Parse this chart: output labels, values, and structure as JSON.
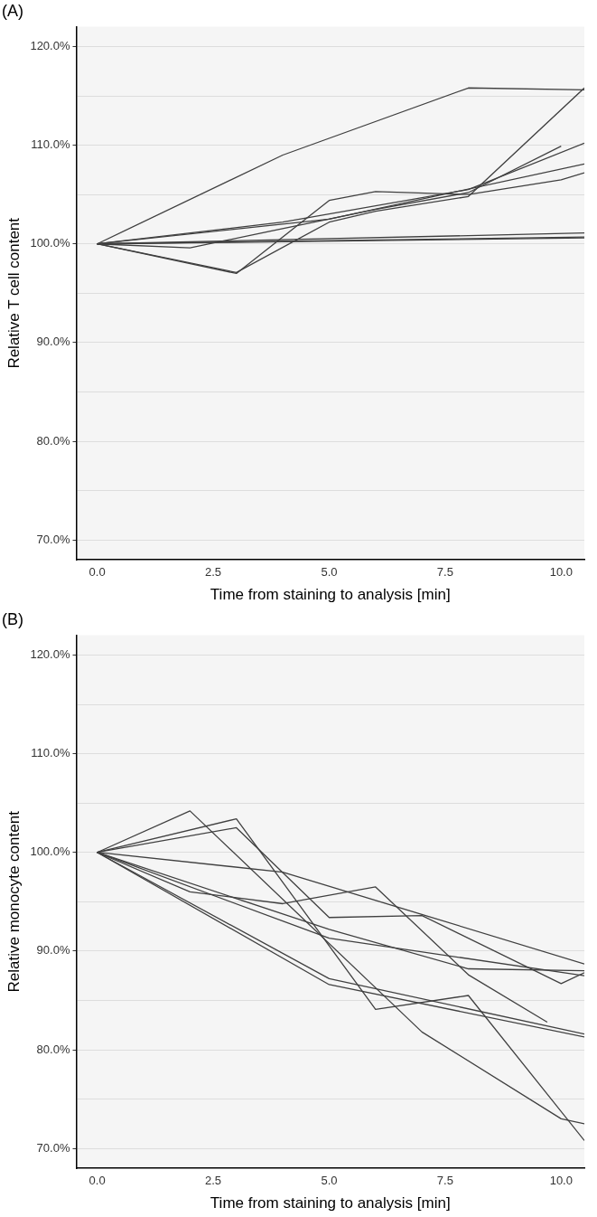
{
  "chart_data": [
    {
      "type": "line",
      "title": "(A)",
      "xlabel": "Time from staining to analysis [min]",
      "ylabel": "Relative T cell content",
      "xlim": [
        -0.45,
        10.5
      ],
      "ylim": [
        68,
        122
      ],
      "xticks": [
        {
          "value": 0,
          "label": "0.0"
        },
        {
          "value": 2.5,
          "label": "2.5"
        },
        {
          "value": 5,
          "label": "5.0"
        },
        {
          "value": 7.5,
          "label": "7.5"
        },
        {
          "value": 10,
          "label": "10.0"
        }
      ],
      "yticks": [
        {
          "value": 70,
          "label": "70.0%"
        },
        {
          "value": 75,
          "label": null
        },
        {
          "value": 80,
          "label": "80.0%"
        },
        {
          "value": 85,
          "label": null
        },
        {
          "value": 90,
          "label": "90.0%"
        },
        {
          "value": 95,
          "label": null
        },
        {
          "value": 100,
          "label": "100.0%"
        },
        {
          "value": 105,
          "label": null
        },
        {
          "value": 110,
          "label": "110.0%"
        },
        {
          "value": 115,
          "label": null
        },
        {
          "value": 120,
          "label": "120.0%"
        }
      ],
      "grid": "y",
      "marker": "none",
      "line_style": "solid",
      "legend": false,
      "series": [
        {
          "color": "#404040",
          "x": [
            0,
            4,
            8,
            10.5
          ],
          "values": [
            100,
            109,
            115.8,
            115.6
          ]
        },
        {
          "color": "#404040",
          "x": [
            0,
            3,
            5,
            6,
            8,
            10.5
          ],
          "values": [
            100,
            97.1,
            102.2,
            103.3,
            104.8,
            115.8
          ]
        },
        {
          "color": "#404040",
          "x": [
            0,
            3,
            5,
            6,
            8,
            10,
            10.5
          ],
          "values": [
            100,
            97.0,
            104.4,
            105.3,
            105.0,
            106.5,
            107.2
          ]
        },
        {
          "color": "#404040",
          "x": [
            0,
            2,
            6,
            8,
            10
          ],
          "values": [
            100,
            99.6,
            103.5,
            105.2,
            109.9
          ]
        },
        {
          "color": "#404040",
          "x": [
            0,
            4,
            8,
            10.5
          ],
          "values": [
            100,
            102.2,
            105.5,
            110.2
          ]
        },
        {
          "color": "#404040",
          "x": [
            0,
            5,
            10.5
          ],
          "values": [
            100,
            102.5,
            108.1
          ]
        },
        {
          "color": "#404040",
          "x": [
            0,
            10.5
          ],
          "values": [
            100,
            101.1
          ]
        },
        {
          "color": "#404040",
          "x": [
            0,
            10.5
          ],
          "values": [
            100,
            100.7
          ]
        },
        {
          "color": "#404040",
          "x": [
            0,
            2,
            10.5
          ],
          "values": [
            100,
            100.1,
            100.6
          ]
        }
      ]
    },
    {
      "type": "line",
      "title": "(B)",
      "xlabel": "Time from staining to analysis [min]",
      "ylabel": "Relative monocyte content",
      "xlim": [
        -0.45,
        10.5
      ],
      "ylim": [
        68,
        122
      ],
      "xticks": [
        {
          "value": 0,
          "label": "0.0"
        },
        {
          "value": 2.5,
          "label": "2.5"
        },
        {
          "value": 5,
          "label": "5.0"
        },
        {
          "value": 7.5,
          "label": "7.5"
        },
        {
          "value": 10,
          "label": "10.0"
        }
      ],
      "yticks": [
        {
          "value": 70,
          "label": "70.0%"
        },
        {
          "value": 75,
          "label": null
        },
        {
          "value": 80,
          "label": "80.0%"
        },
        {
          "value": 85,
          "label": null
        },
        {
          "value": 90,
          "label": "90.0%"
        },
        {
          "value": 95,
          "label": null
        },
        {
          "value": 100,
          "label": "100.0%"
        },
        {
          "value": 105,
          "label": null
        },
        {
          "value": 110,
          "label": "110.0%"
        },
        {
          "value": 115,
          "label": null
        },
        {
          "value": 120,
          "label": "120.0%"
        }
      ],
      "grid": "y",
      "marker": "none",
      "line_style": "solid",
      "legend": false,
      "series": [
        {
          "color": "#404040",
          "x": [
            0,
            2,
            7,
            10,
            10.5
          ],
          "values": [
            100,
            104.2,
            81.8,
            73.0,
            72.5
          ]
        },
        {
          "color": "#404040",
          "x": [
            0,
            3,
            6,
            8,
            10.5
          ],
          "values": [
            100,
            103.4,
            84.1,
            85.5,
            70.8
          ]
        },
        {
          "color": "#404040",
          "x": [
            0,
            3,
            5,
            7,
            10,
            10.5
          ],
          "values": [
            100,
            102.5,
            93.4,
            93.6,
            86.7,
            87.8
          ]
        },
        {
          "color": "#404040",
          "x": [
            0,
            2,
            4,
            6,
            8,
            9.7
          ],
          "values": [
            100,
            96.0,
            94.8,
            96.5,
            87.6,
            82.8
          ]
        },
        {
          "color": "#404040",
          "x": [
            0,
            4,
            10.5
          ],
          "values": [
            100,
            98.0,
            88.7
          ]
        },
        {
          "color": "#404040",
          "x": [
            0,
            5,
            8,
            10.5
          ],
          "values": [
            100,
            92.2,
            88.2,
            88.0
          ]
        },
        {
          "color": "#404040",
          "x": [
            0,
            5,
            10.5
          ],
          "values": [
            100,
            91.3,
            87.5
          ]
        },
        {
          "color": "#404040",
          "x": [
            0,
            5,
            10.5
          ],
          "values": [
            100,
            87.2,
            81.6
          ]
        },
        {
          "color": "#404040",
          "x": [
            0,
            5,
            10.5
          ],
          "values": [
            100,
            86.6,
            81.3
          ]
        }
      ]
    }
  ]
}
